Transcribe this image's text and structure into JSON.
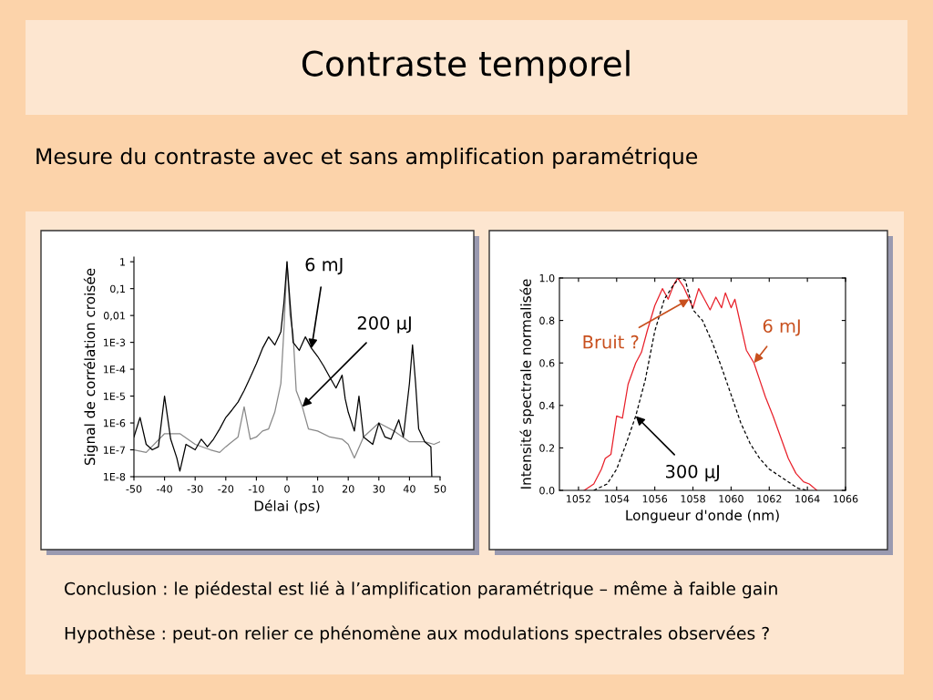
{
  "chart_data": [
    {
      "type": "line",
      "title": "Contraste temporel",
      "subtitle": "Mesure du contraste avec et sans amplification paramétrique",
      "xlabel": "Délai (ps)",
      "ylabel": "Signal de corrélation croisée",
      "log": "y",
      "xlim": [
        -50,
        50
      ],
      "xticks": [
        -50,
        -40,
        -30,
        -20,
        -10,
        0,
        10,
        20,
        30,
        40,
        50
      ],
      "ylim": [
        1e-08,
        1.5
      ],
      "yticks": [
        {
          "value": 1,
          "label": "1"
        },
        {
          "value": 0.1,
          "label": "0,1"
        },
        {
          "value": 0.01,
          "label": "0,01"
        },
        {
          "value": 0.001,
          "label": "1E-3"
        },
        {
          "value": 0.0001,
          "label": "1E-4"
        },
        {
          "value": 1e-05,
          "label": "1E-5"
        },
        {
          "value": 1e-06,
          "label": "1E-6"
        },
        {
          "value": 1e-07,
          "label": "1E-7"
        },
        {
          "value": 1e-08,
          "label": "1E-8"
        }
      ],
      "grid": false,
      "series": [
        {
          "color": "#888888",
          "x": [
            -50,
            -46,
            -40,
            -35,
            -30,
            -25,
            -22,
            -20,
            -18,
            -16,
            -14,
            -12,
            -10,
            -8,
            -6,
            -4,
            -2,
            -1,
            0,
            1,
            2,
            3,
            5,
            7,
            10,
            14,
            18,
            20,
            22,
            25,
            30,
            35,
            40,
            45,
            48,
            50
          ],
          "values": [
            1e-07,
            8e-08,
            4e-07,
            4e-07,
            1.6e-07,
            1e-07,
            8e-08,
            1.3e-07,
            2e-07,
            3e-07,
            4e-06,
            2.5e-07,
            3e-07,
            5e-07,
            6e-07,
            2.5e-06,
            3e-05,
            0.003,
            1,
            0.01,
            0.002,
            1.6e-05,
            4e-06,
            6e-07,
            5e-07,
            3e-07,
            2.5e-07,
            1.6e-07,
            5e-08,
            3e-07,
            1e-06,
            5e-07,
            2e-07,
            2e-07,
            1.6e-07,
            2e-07
          ]
        },
        {
          "color": "#000000",
          "x": [
            -50,
            -48,
            -46,
            -44,
            -42,
            -40,
            -38,
            -36,
            -35,
            -33,
            -30,
            -28,
            -26,
            -24,
            -22,
            -20,
            -18,
            -16,
            -14,
            -12,
            -10,
            -8,
            -6,
            -4,
            -2,
            -1,
            0,
            1,
            2,
            4,
            6,
            8,
            10,
            12,
            14,
            16,
            18,
            19,
            20,
            22,
            23.5,
            25,
            28,
            30,
            32,
            34,
            36.5,
            38,
            40,
            41,
            42,
            43,
            45,
            47,
            47.3
          ],
          "values": [
            3e-07,
            1.6e-06,
            1.6e-07,
            1e-07,
            1.3e-07,
            1e-05,
            2.5e-07,
            5e-08,
            1.6e-08,
            1.6e-07,
            1e-07,
            2.5e-07,
            1.3e-07,
            2.5e-07,
            6e-07,
            1.6e-06,
            3e-06,
            6e-06,
            1.6e-05,
            5e-05,
            0.00016,
            0.0006,
            0.0016,
            0.0008,
            0.0025,
            0.03,
            1,
            0.03,
            0.001,
            0.0005,
            0.0016,
            0.0006,
            0.0003,
            0.00013,
            5e-05,
            2e-05,
            6e-05,
            8e-06,
            2.5e-06,
            5e-07,
            1e-05,
            3e-07,
            1.6e-07,
            1e-06,
            3e-07,
            2.5e-07,
            1.3e-06,
            3e-07,
            3e-05,
            0.0008,
            3e-05,
            6e-07,
            2e-07,
            1.3e-07,
            1e-08
          ]
        }
      ],
      "annotations": [
        {
          "text": "6 mJ",
          "x": 8,
          "y": 0.0006
        },
        {
          "text": "200 µJ",
          "x": 5,
          "y": 4e-06
        }
      ]
    },
    {
      "type": "line",
      "xlabel": "Longueur d'onde (nm)",
      "ylabel": "Intensité spectrale normalisée",
      "xlim": [
        1051,
        1066
      ],
      "xticks": [
        1052,
        1054,
        1056,
        1058,
        1060,
        1062,
        1064,
        1066
      ],
      "ylim": [
        0,
        1
      ],
      "yticks": [
        {
          "value": 0,
          "label": "0.0"
        },
        {
          "value": 0.2,
          "label": "0.2"
        },
        {
          "value": 0.4,
          "label": "0.4"
        },
        {
          "value": 0.6,
          "label": "0.6"
        },
        {
          "value": 0.8,
          "label": "0.8"
        },
        {
          "value": 1,
          "label": "1.0"
        }
      ],
      "grid": false,
      "series": [
        {
          "color": "#e8202a",
          "line_style": "solid",
          "x": [
            1052.3,
            1052.8,
            1053.2,
            1053.4,
            1053.7,
            1054.0,
            1054.3,
            1054.6,
            1055.0,
            1055.3,
            1055.6,
            1056.0,
            1056.4,
            1056.7,
            1057.0,
            1057.2,
            1057.5,
            1057.8,
            1058.0,
            1058.3,
            1058.6,
            1058.9,
            1059.2,
            1059.5,
            1059.7,
            1060.0,
            1060.2,
            1060.5,
            1060.8,
            1061.2,
            1061.5,
            1061.8,
            1062.2,
            1062.6,
            1063.0,
            1063.4,
            1063.8,
            1064.1,
            1064.5
          ],
          "values": [
            0,
            0.03,
            0.1,
            0.15,
            0.17,
            0.35,
            0.34,
            0.5,
            0.6,
            0.65,
            0.75,
            0.87,
            0.95,
            0.9,
            0.97,
            1.0,
            0.96,
            0.9,
            0.86,
            0.95,
            0.9,
            0.85,
            0.91,
            0.86,
            0.93,
            0.86,
            0.9,
            0.78,
            0.66,
            0.6,
            0.52,
            0.44,
            0.35,
            0.25,
            0.15,
            0.08,
            0.04,
            0.03,
            0
          ]
        },
        {
          "color": "#000000",
          "line_style": "dashed",
          "x": [
            1052.8,
            1053.5,
            1054.0,
            1054.5,
            1055.0,
            1055.5,
            1056.0,
            1056.5,
            1057.0,
            1057.3,
            1057.6,
            1058.0,
            1058.5,
            1059.0,
            1059.5,
            1060.0,
            1060.5,
            1061.0,
            1061.5,
            1062.0,
            1062.5,
            1063.0,
            1063.5,
            1064.0
          ],
          "values": [
            0,
            0.03,
            0.1,
            0.22,
            0.35,
            0.52,
            0.75,
            0.9,
            0.97,
            1.0,
            0.99,
            0.85,
            0.8,
            0.7,
            0.58,
            0.45,
            0.32,
            0.22,
            0.15,
            0.1,
            0.07,
            0.04,
            0.01,
            0
          ]
        }
      ],
      "annotations": [
        {
          "text": "6 mJ",
          "x": 1061.2,
          "y": 0.6
        },
        {
          "text": "Bruit ?",
          "x": 1057.8,
          "y": 0.9
        },
        {
          "text": "300 µJ",
          "x": 1055.0,
          "y": 0.35
        },
        "Conclusion : le piédestal est lié à l’amplification paramétrique – même à faible gain",
        "Hypothèse : peut-on relier ce phénomène aux modulations spectrales observées ?"
      ]
    }
  ]
}
